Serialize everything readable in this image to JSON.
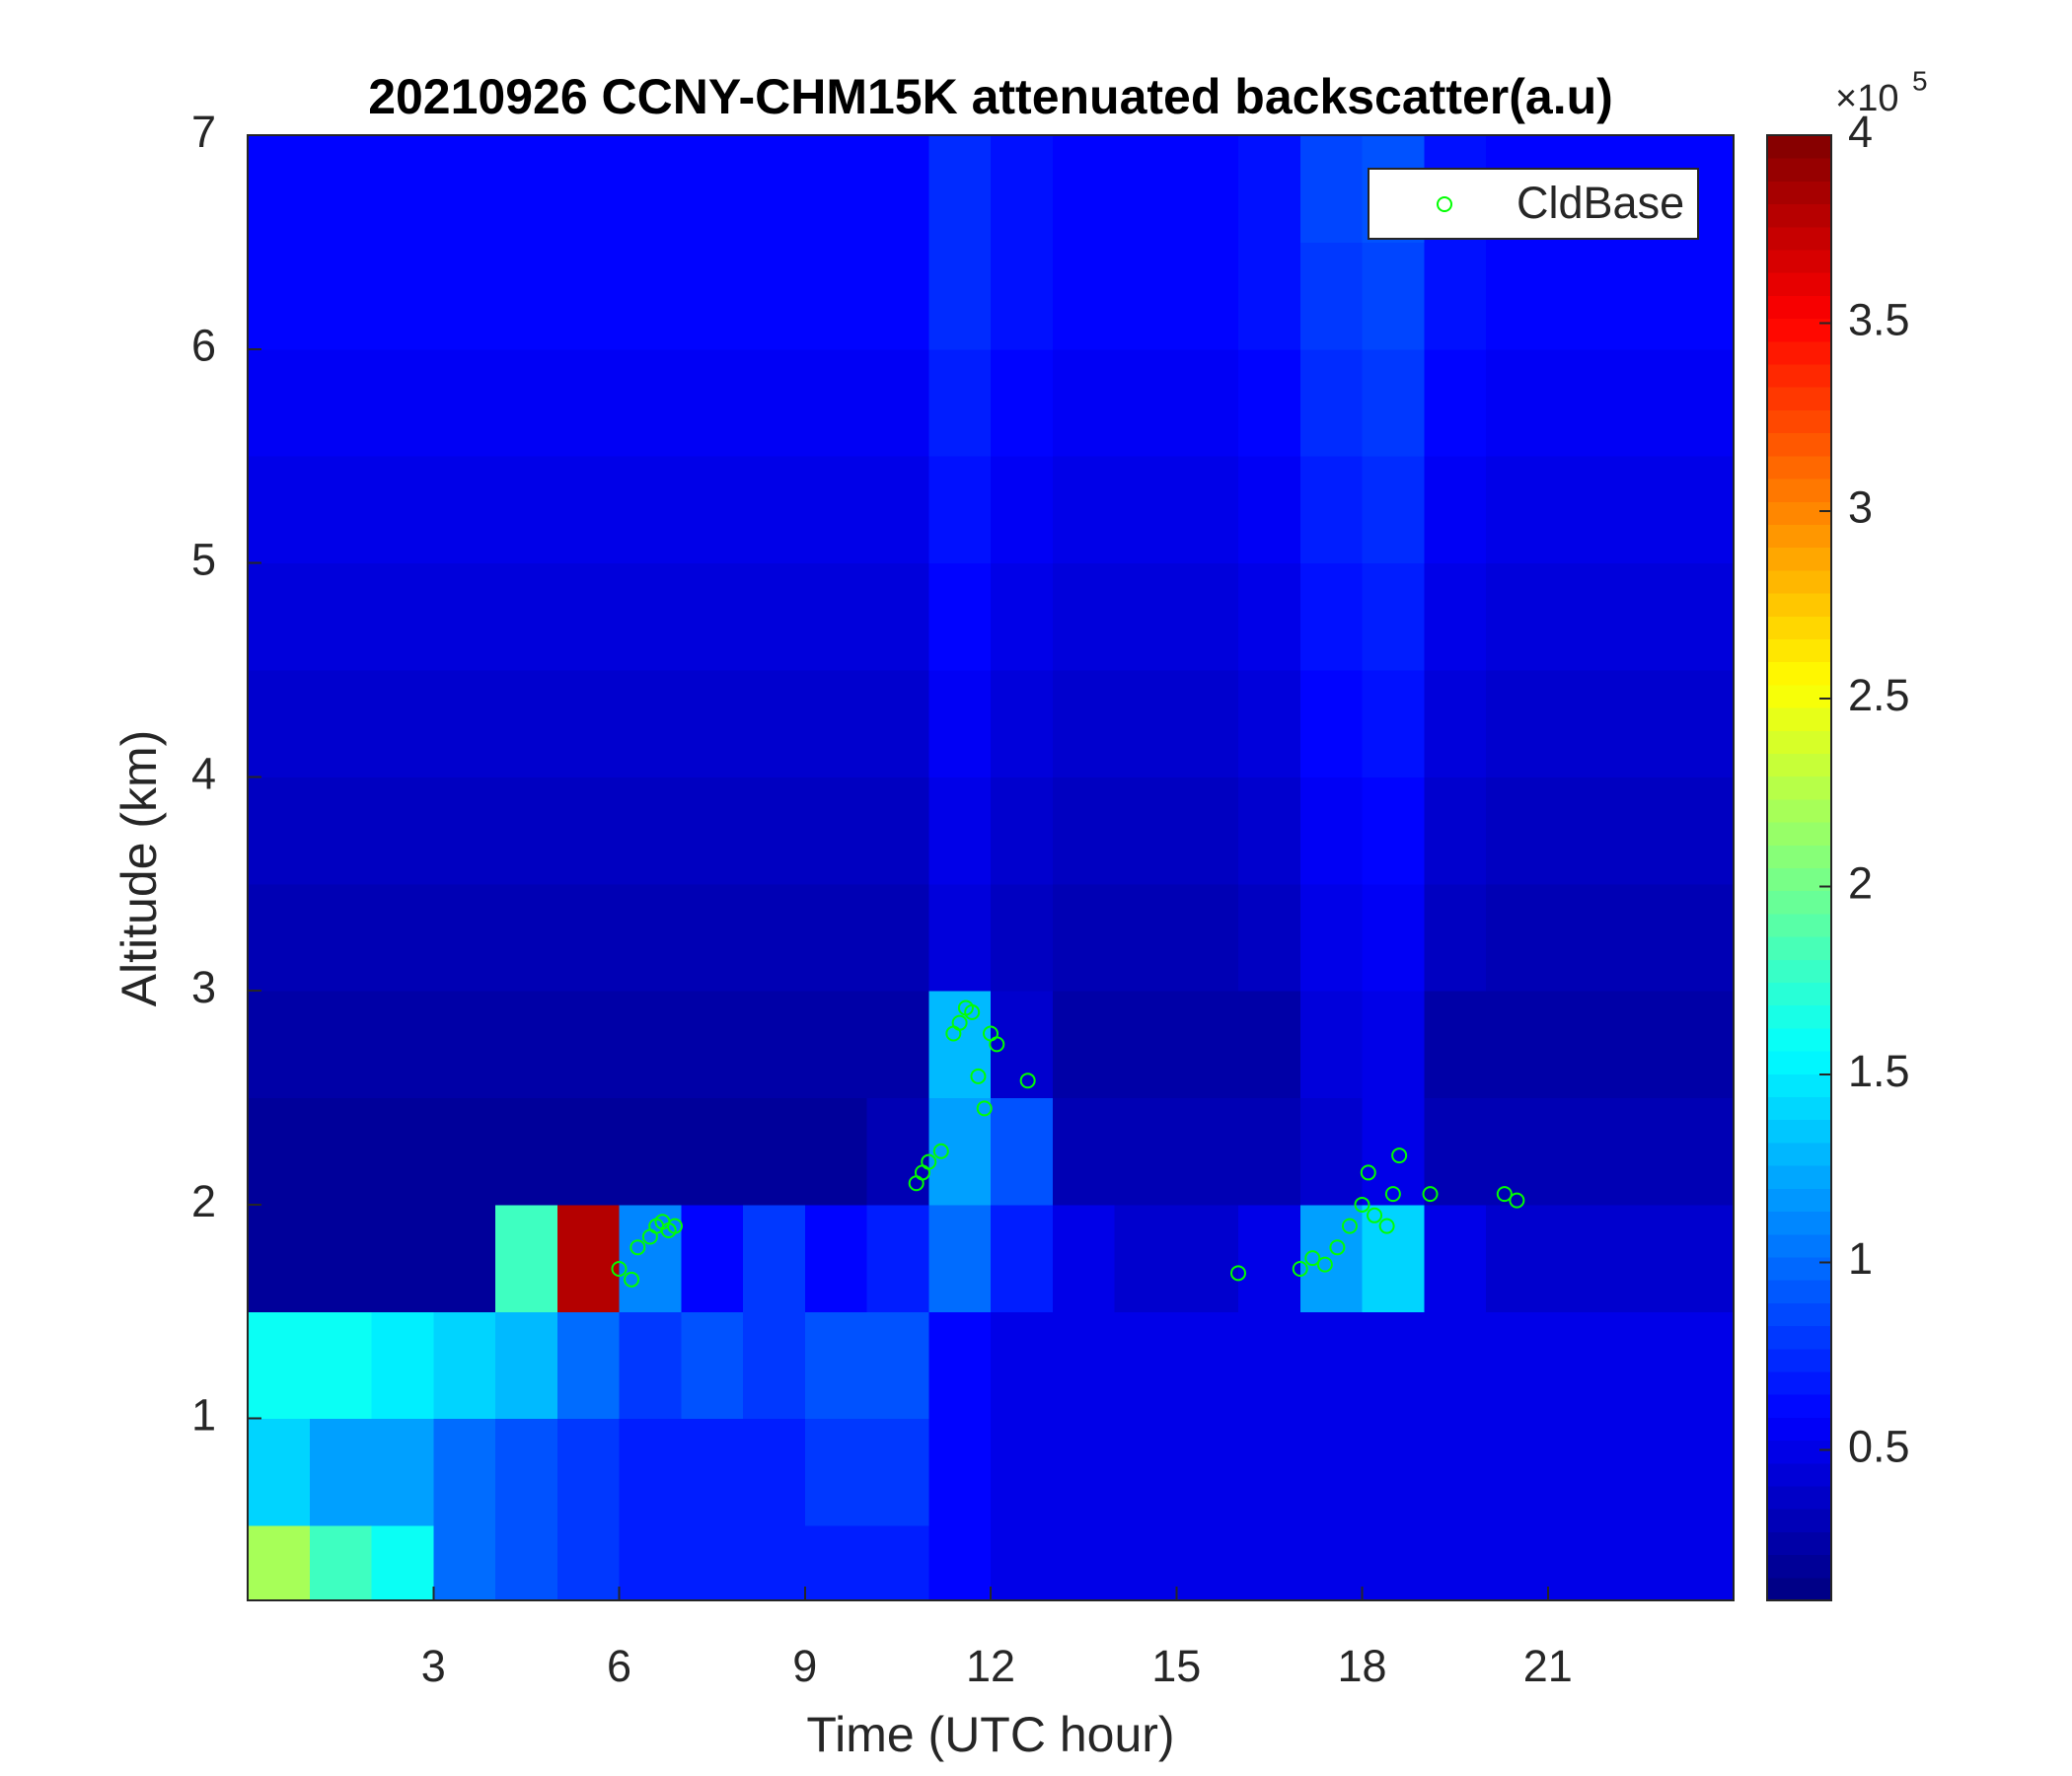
{
  "chart_data": {
    "type": "heatmap",
    "title": "20210926 CCNY-CHM15K attenuated backscatter(a.u)",
    "x_label": "Time (UTC hour)",
    "y_label": "Altitude (km)",
    "xlim": [
      0,
      24
    ],
    "xticks": [
      3,
      6,
      9,
      12,
      15,
      18,
      21
    ],
    "ylim": [
      0.15,
      7
    ],
    "yticks": [
      1,
      2,
      3,
      4,
      5,
      6,
      7
    ],
    "x": [
      0.5,
      1.5,
      2.5,
      3.5,
      4.5,
      5.5,
      6.5,
      7.5,
      8.5,
      9.5,
      10.5,
      11.5,
      12.5,
      13.5,
      14.5,
      15.5,
      16.5,
      17.5,
      18.5,
      19.5,
      20.5,
      21.5,
      22.5,
      23.5
    ],
    "y": [
      0.25,
      0.75,
      1.25,
      1.75,
      2.25,
      2.75,
      3.25,
      3.75,
      4.25,
      4.75,
      5.25,
      5.75,
      6.25,
      6.75
    ],
    "z": [
      [
        2.2,
        1.8,
        1.6,
        1.0,
        0.9,
        0.8,
        0.7,
        0.7,
        0.7,
        0.7,
        0.7,
        0.6,
        0.5,
        0.5,
        0.5,
        0.5,
        0.5,
        0.5,
        0.5,
        0.5,
        0.5,
        0.5,
        0.5,
        0.5
      ],
      [
        1.4,
        1.2,
        1.2,
        1.0,
        0.9,
        0.8,
        0.7,
        0.7,
        0.7,
        0.8,
        0.8,
        0.6,
        0.5,
        0.5,
        0.5,
        0.5,
        0.5,
        0.5,
        0.5,
        0.5,
        0.5,
        0.5,
        0.5,
        0.5
      ],
      [
        1.6,
        1.6,
        1.5,
        1.4,
        1.3,
        1.0,
        0.8,
        0.9,
        0.8,
        0.9,
        0.9,
        0.6,
        0.5,
        0.5,
        0.5,
        0.5,
        0.5,
        0.5,
        0.5,
        0.5,
        0.5,
        0.5,
        0.5,
        0.5
      ],
      [
        0.2,
        0.2,
        0.2,
        0.2,
        1.8,
        3.8,
        1.1,
        0.6,
        0.8,
        0.6,
        0.7,
        1.0,
        0.7,
        0.5,
        0.4,
        0.4,
        0.5,
        1.2,
        1.4,
        0.5,
        0.4,
        0.4,
        0.4,
        0.4
      ],
      [
        0.2,
        0.2,
        0.2,
        0.2,
        0.2,
        0.2,
        0.2,
        0.2,
        0.2,
        0.2,
        0.3,
        1.2,
        0.9,
        0.3,
        0.3,
        0.3,
        0.3,
        0.4,
        0.5,
        0.3,
        0.3,
        0.3,
        0.3,
        0.3
      ],
      [
        0.25,
        0.25,
        0.25,
        0.25,
        0.25,
        0.25,
        0.25,
        0.25,
        0.25,
        0.25,
        0.25,
        1.3,
        0.4,
        0.25,
        0.25,
        0.25,
        0.25,
        0.45,
        0.5,
        0.25,
        0.25,
        0.25,
        0.25,
        0.25
      ],
      [
        0.3,
        0.3,
        0.3,
        0.3,
        0.3,
        0.3,
        0.3,
        0.3,
        0.3,
        0.3,
        0.3,
        0.45,
        0.35,
        0.3,
        0.3,
        0.3,
        0.35,
        0.5,
        0.55,
        0.35,
        0.3,
        0.3,
        0.3,
        0.3
      ],
      [
        0.35,
        0.35,
        0.35,
        0.35,
        0.35,
        0.35,
        0.35,
        0.35,
        0.35,
        0.35,
        0.35,
        0.5,
        0.4,
        0.35,
        0.35,
        0.35,
        0.4,
        0.55,
        0.6,
        0.4,
        0.35,
        0.35,
        0.35,
        0.35
      ],
      [
        0.4,
        0.4,
        0.4,
        0.4,
        0.4,
        0.4,
        0.4,
        0.4,
        0.4,
        0.4,
        0.4,
        0.55,
        0.45,
        0.4,
        0.4,
        0.4,
        0.45,
        0.6,
        0.65,
        0.45,
        0.4,
        0.4,
        0.4,
        0.4
      ],
      [
        0.45,
        0.45,
        0.45,
        0.45,
        0.45,
        0.45,
        0.45,
        0.45,
        0.45,
        0.45,
        0.45,
        0.6,
        0.5,
        0.45,
        0.45,
        0.45,
        0.5,
        0.65,
        0.7,
        0.5,
        0.45,
        0.45,
        0.45,
        0.45
      ],
      [
        0.5,
        0.5,
        0.5,
        0.5,
        0.5,
        0.5,
        0.5,
        0.5,
        0.5,
        0.5,
        0.5,
        0.65,
        0.55,
        0.5,
        0.5,
        0.5,
        0.55,
        0.7,
        0.75,
        0.55,
        0.5,
        0.5,
        0.5,
        0.5
      ],
      [
        0.55,
        0.55,
        0.55,
        0.55,
        0.55,
        0.55,
        0.55,
        0.55,
        0.55,
        0.55,
        0.55,
        0.7,
        0.6,
        0.55,
        0.55,
        0.55,
        0.6,
        0.75,
        0.8,
        0.6,
        0.55,
        0.55,
        0.55,
        0.55
      ],
      [
        0.6,
        0.6,
        0.6,
        0.6,
        0.6,
        0.6,
        0.6,
        0.6,
        0.6,
        0.6,
        0.6,
        0.75,
        0.65,
        0.6,
        0.6,
        0.6,
        0.65,
        0.8,
        0.85,
        0.65,
        0.6,
        0.6,
        0.6,
        0.6
      ],
      [
        0.6,
        0.6,
        0.6,
        0.6,
        0.6,
        0.6,
        0.6,
        0.6,
        0.6,
        0.6,
        0.6,
        0.75,
        0.65,
        0.6,
        0.6,
        0.6,
        0.65,
        0.85,
        0.9,
        0.65,
        0.6,
        0.6,
        0.6,
        0.6
      ]
    ],
    "clim": [
      0.1,
      4
    ],
    "cticks": [
      0.5,
      1,
      1.5,
      2,
      2.5,
      3,
      3.5,
      4
    ],
    "colorbar_multiplier": "×10",
    "colorbar_exponent": "5",
    "colormap": "jet",
    "series": [
      {
        "name": "CldBase",
        "type": "scatter",
        "color": "#00ff00",
        "x": [
          6.0,
          6.2,
          6.3,
          6.5,
          6.6,
          6.7,
          6.8,
          6.9,
          10.8,
          10.9,
          11.0,
          11.2,
          11.4,
          11.5,
          11.6,
          11.7,
          11.8,
          11.9,
          12.0,
          12.1,
          12.6,
          16.0,
          17.0,
          17.2,
          17.4,
          17.6,
          17.8,
          18.0,
          18.1,
          18.2,
          18.4,
          18.5,
          18.6,
          19.1,
          20.3,
          20.5
        ],
        "values": [
          1.7,
          1.65,
          1.8,
          1.85,
          1.9,
          1.92,
          1.88,
          1.9,
          2.1,
          2.15,
          2.2,
          2.25,
          2.8,
          2.85,
          2.92,
          2.9,
          2.6,
          2.45,
          2.8,
          2.75,
          2.58,
          1.68,
          1.7,
          1.75,
          1.72,
          1.8,
          1.9,
          2.0,
          2.15,
          1.95,
          1.9,
          2.05,
          2.23,
          2.05,
          2.05,
          2.02
        ]
      }
    ],
    "legend": "upper right"
  }
}
